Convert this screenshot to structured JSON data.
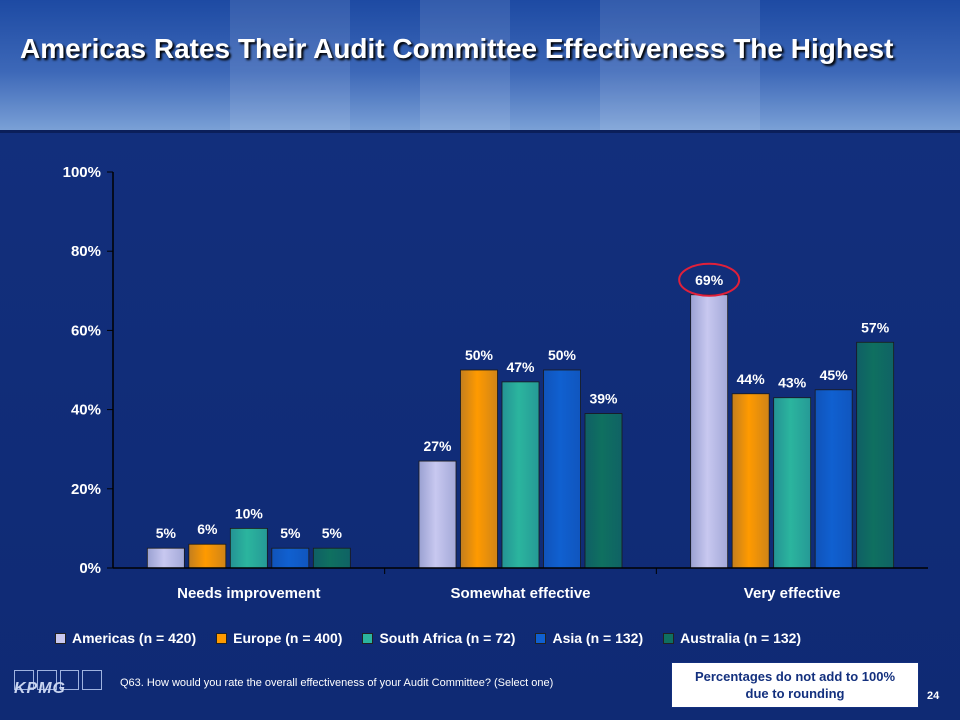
{
  "title": "Americas Rates Their Audit Committee Effectiveness The Highest",
  "chart_data": {
    "type": "bar",
    "categories": [
      "Needs improvement",
      "Somewhat effective",
      "Very effective"
    ],
    "series": [
      {
        "name": "Americas (n = 420)",
        "values": [
          5,
          27,
          69
        ],
        "labels": [
          "5%",
          "27%",
          "69%"
        ]
      },
      {
        "name": "Europe (n = 400)",
        "values": [
          6,
          50,
          44
        ],
        "labels": [
          "6%",
          "50%",
          "44%"
        ]
      },
      {
        "name": "South Africa (n = 72)",
        "values": [
          10,
          47,
          43
        ],
        "labels": [
          "10%",
          "47%",
          "43%"
        ]
      },
      {
        "name": "Asia (n = 132)",
        "values": [
          5,
          50,
          45
        ],
        "labels": [
          "5%",
          "50%",
          "45%"
        ]
      },
      {
        "name": "Australia (n = 132)",
        "values": [
          5,
          39,
          57
        ],
        "labels": [
          "5%",
          "39%",
          "57%"
        ]
      }
    ],
    "yticks": [
      "0%",
      "20%",
      "40%",
      "60%",
      "80%",
      "100%"
    ],
    "ylim": [
      0,
      100
    ],
    "legend_position": "bottom",
    "highlight": {
      "series": 0,
      "category": 2
    },
    "colors": [
      "#c8c8f0",
      "#ff9a00",
      "#2bb59e",
      "#1060d0",
      "#0f7060"
    ]
  },
  "footer": {
    "question": "Q63. How would you rate the overall effectiveness of your Audit Committee? (Select one)",
    "note": "Percentages do not add to 100% due to rounding",
    "page_number": "24",
    "logo": "KPMG"
  }
}
